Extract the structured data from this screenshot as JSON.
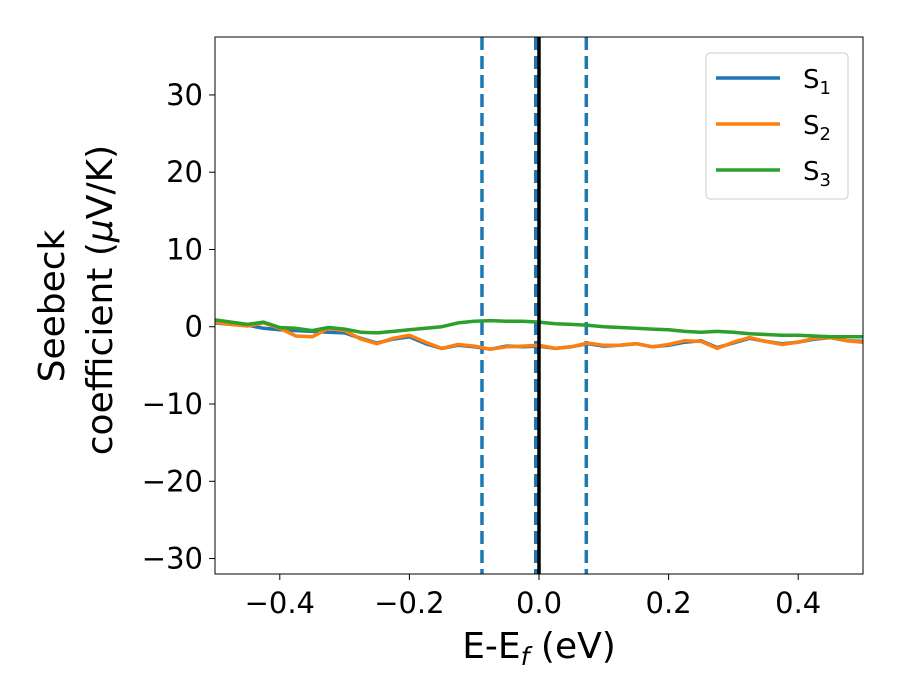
{
  "chart_data": {
    "type": "line",
    "title": "",
    "xlabel": "E-E",
    "xlabel_sub": "f",
    "xlabel_unit": " (eV)",
    "ylabel_line1": "Seebeck",
    "ylabel_line2_pre": "coefficient  (",
    "ylabel_mu": "μ",
    "ylabel_line2_post": "V/K)",
    "xlim": [
      -0.5,
      0.5
    ],
    "ylim": [
      -32,
      37.5
    ],
    "xticks": [
      -0.4,
      -0.2,
      0.0,
      0.2,
      0.4
    ],
    "xtick_labels": [
      "−0.4",
      "−0.2",
      "0.0",
      "0.2",
      "0.4"
    ],
    "yticks": [
      30,
      20,
      10,
      0,
      -10,
      -20,
      -30
    ],
    "ytick_labels": [
      "30",
      "20",
      "10",
      "0",
      "−10",
      "−20",
      "−30"
    ],
    "grid": false,
    "legend_position": "top-right",
    "vertical_lines": [
      {
        "x": -0.088,
        "style": "dashed",
        "color": "#1f77b4"
      },
      {
        "x": -0.005,
        "style": "dashed",
        "color": "#1f77b4"
      },
      {
        "x": 0.073,
        "style": "dashed",
        "color": "#1f77b4"
      },
      {
        "x": 0.0,
        "style": "solid",
        "color": "#000000"
      }
    ],
    "x": [
      -0.5,
      -0.475,
      -0.45,
      -0.425,
      -0.4,
      -0.375,
      -0.35,
      -0.325,
      -0.3,
      -0.275,
      -0.25,
      -0.225,
      -0.2,
      -0.175,
      -0.15,
      -0.125,
      -0.1,
      -0.075,
      -0.05,
      -0.025,
      0.0,
      0.025,
      0.05,
      0.075,
      0.1,
      0.125,
      0.15,
      0.175,
      0.2,
      0.225,
      0.25,
      0.275,
      0.3,
      0.325,
      0.35,
      0.375,
      0.4,
      0.425,
      0.45,
      0.475,
      0.5
    ],
    "series": [
      {
        "name": "S",
        "sub": "1",
        "color": "#1f77b4",
        "values": [
          0.5,
          0.3,
          0.2,
          -0.2,
          -0.4,
          -0.5,
          -0.6,
          -0.7,
          -0.8,
          -1.5,
          -2.1,
          -1.6,
          -1.3,
          -2.2,
          -2.8,
          -2.4,
          -2.6,
          -2.9,
          -2.5,
          -2.6,
          -2.5,
          -2.8,
          -2.6,
          -2.2,
          -2.5,
          -2.4,
          -2.2,
          -2.6,
          -2.4,
          -2.0,
          -1.8,
          -2.7,
          -2.1,
          -1.5,
          -1.9,
          -2.2,
          -2.0,
          -1.6,
          -1.4,
          -1.8,
          -1.9
        ]
      },
      {
        "name": "S",
        "sub": "2",
        "color": "#ff7f0e",
        "values": [
          0.6,
          0.3,
          0.1,
          0.5,
          -0.2,
          -1.2,
          -1.3,
          -0.2,
          -0.5,
          -1.6,
          -2.2,
          -1.5,
          -1.1,
          -2.0,
          -2.8,
          -2.3,
          -2.5,
          -2.9,
          -2.6,
          -2.5,
          -2.4,
          -2.8,
          -2.6,
          -2.1,
          -2.4,
          -2.4,
          -2.2,
          -2.6,
          -2.3,
          -1.8,
          -1.9,
          -2.8,
          -2.0,
          -1.4,
          -1.9,
          -2.3,
          -2.0,
          -1.5,
          -1.4,
          -1.8,
          -2.0
        ]
      },
      {
        "name": "S",
        "sub": "3",
        "color": "#2ca02c",
        "values": [
          0.9,
          0.6,
          0.3,
          0.6,
          -0.1,
          -0.2,
          -0.5,
          -0.1,
          -0.3,
          -0.7,
          -0.8,
          -0.6,
          -0.4,
          -0.2,
          0.0,
          0.5,
          0.7,
          0.8,
          0.7,
          0.7,
          0.6,
          0.4,
          0.3,
          0.2,
          0.0,
          -0.1,
          -0.2,
          -0.3,
          -0.4,
          -0.6,
          -0.7,
          -0.6,
          -0.7,
          -0.9,
          -1.0,
          -1.1,
          -1.1,
          -1.2,
          -1.3,
          -1.3,
          -1.3
        ]
      }
    ]
  }
}
